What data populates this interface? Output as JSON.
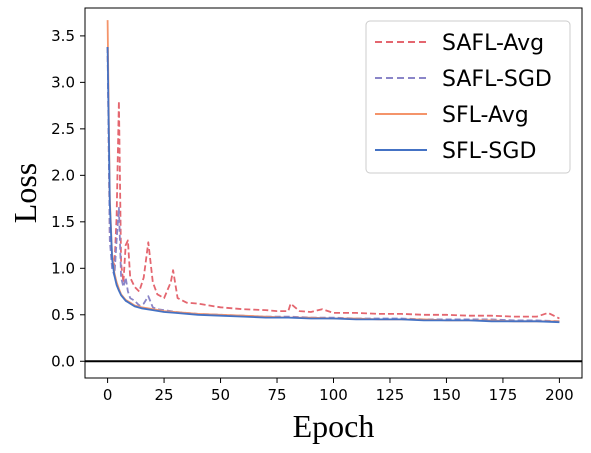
{
  "chart_data": {
    "type": "line",
    "title": "",
    "xlabel": "Epoch",
    "ylabel": "Loss",
    "xlim": [
      -10,
      210
    ],
    "ylim": [
      -0.18,
      3.8
    ],
    "x_ticks": [
      0,
      25,
      50,
      75,
      100,
      125,
      150,
      175,
      200
    ],
    "y_ticks": [
      0.0,
      0.5,
      1.0,
      1.5,
      2.0,
      2.5,
      3.0,
      3.5
    ],
    "x_tick_labels": [
      "0",
      "25",
      "50",
      "75",
      "100",
      "125",
      "150",
      "175",
      "200"
    ],
    "y_tick_labels": [
      "0.0",
      "0.5",
      "1.0",
      "1.5",
      "2.0",
      "2.5",
      "3.0",
      "3.5"
    ],
    "reference_line": {
      "y": 0.0,
      "color": "#000000"
    },
    "grid": false,
    "legend_position": "top-right",
    "series": [
      {
        "name": "SAFL-Avg",
        "color": "#e4666f",
        "style": "dashed",
        "x": [
          0,
          1,
          2,
          3,
          4,
          5,
          6,
          7,
          8,
          9,
          10,
          12,
          14,
          16,
          18,
          20,
          22,
          25,
          28,
          29,
          31,
          35,
          40,
          45,
          50,
          60,
          70,
          75,
          80,
          81,
          85,
          90,
          95,
          100,
          110,
          120,
          130,
          140,
          150,
          160,
          170,
          180,
          190,
          195,
          200
        ],
        "y": [
          3.38,
          1.35,
          1.15,
          1.02,
          1.55,
          2.8,
          1.05,
          0.85,
          1.25,
          1.3,
          0.9,
          0.8,
          0.75,
          0.9,
          1.28,
          0.85,
          0.72,
          0.68,
          0.85,
          0.98,
          0.68,
          0.63,
          0.62,
          0.6,
          0.58,
          0.56,
          0.55,
          0.54,
          0.54,
          0.62,
          0.54,
          0.53,
          0.56,
          0.52,
          0.52,
          0.51,
          0.51,
          0.5,
          0.5,
          0.49,
          0.49,
          0.48,
          0.48,
          0.52,
          0.46
        ]
      },
      {
        "name": "SAFL-SGD",
        "color": "#8a85c8",
        "style": "dashed",
        "x": [
          0,
          1,
          2,
          3,
          4,
          5,
          6,
          7,
          8,
          9,
          10,
          12,
          14,
          16,
          18,
          20,
          22,
          25,
          30,
          35,
          40,
          50,
          60,
          70,
          80,
          90,
          100,
          110,
          120,
          130,
          140,
          150,
          160,
          170,
          180,
          190,
          200
        ],
        "y": [
          3.38,
          1.3,
          1.0,
          0.92,
          1.3,
          1.65,
          0.9,
          0.8,
          0.9,
          0.75,
          0.68,
          0.65,
          0.6,
          0.62,
          0.7,
          0.58,
          0.56,
          0.55,
          0.53,
          0.52,
          0.51,
          0.5,
          0.49,
          0.48,
          0.48,
          0.47,
          0.47,
          0.46,
          0.46,
          0.46,
          0.45,
          0.45,
          0.45,
          0.45,
          0.44,
          0.44,
          0.43
        ]
      },
      {
        "name": "SFL-Avg",
        "color": "#f4946a",
        "style": "solid",
        "x": [
          0,
          1,
          2,
          3,
          4,
          5,
          6,
          8,
          10,
          12,
          15,
          20,
          25,
          30,
          40,
          50,
          60,
          70,
          80,
          90,
          100,
          110,
          120,
          130,
          140,
          150,
          160,
          170,
          180,
          190,
          200
        ],
        "y": [
          3.67,
          1.75,
          1.15,
          0.95,
          0.85,
          0.78,
          0.72,
          0.66,
          0.63,
          0.6,
          0.58,
          0.56,
          0.54,
          0.53,
          0.51,
          0.5,
          0.49,
          0.48,
          0.47,
          0.47,
          0.46,
          0.46,
          0.45,
          0.45,
          0.45,
          0.44,
          0.44,
          0.44,
          0.43,
          0.43,
          0.43
        ]
      },
      {
        "name": "SFL-SGD",
        "color": "#4472c4",
        "style": "solid",
        "x": [
          0,
          1,
          2,
          3,
          4,
          5,
          6,
          8,
          10,
          12,
          15,
          20,
          25,
          30,
          40,
          50,
          60,
          70,
          80,
          90,
          100,
          110,
          120,
          130,
          140,
          150,
          160,
          170,
          180,
          190,
          200
        ],
        "y": [
          3.38,
          1.7,
          1.1,
          0.92,
          0.82,
          0.76,
          0.71,
          0.65,
          0.62,
          0.59,
          0.57,
          0.55,
          0.53,
          0.52,
          0.5,
          0.49,
          0.48,
          0.47,
          0.47,
          0.46,
          0.46,
          0.45,
          0.45,
          0.45,
          0.44,
          0.44,
          0.44,
          0.43,
          0.43,
          0.43,
          0.42
        ]
      }
    ]
  }
}
